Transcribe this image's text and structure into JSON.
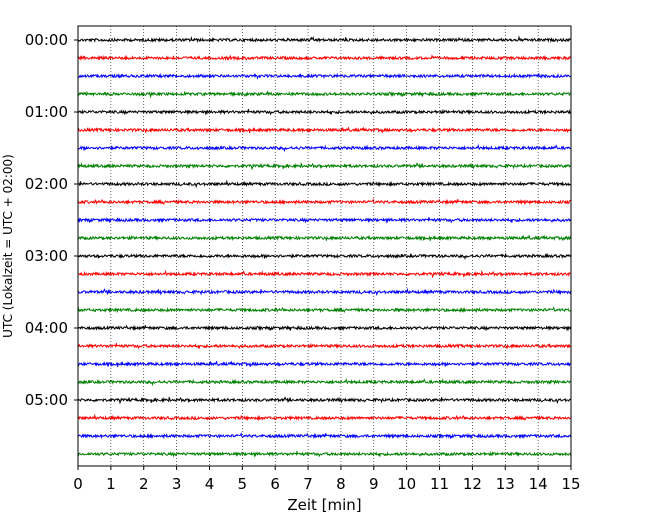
{
  "chart_data": {
    "type": "line",
    "title": "",
    "xlabel": "Zeit  [min]",
    "ylabel": "UTC (Lokalzeit = UTC + 02:00)",
    "xlim": [
      0,
      15
    ],
    "x_ticks": [
      "0",
      "1",
      "2",
      "3",
      "4",
      "5",
      "6",
      "7",
      "8",
      "9",
      "10",
      "11",
      "12",
      "13",
      "14",
      "15"
    ],
    "y_ticks": [
      "00:00",
      "01:00",
      "02:00",
      "03:00",
      "04:00",
      "05:00"
    ],
    "grid": "vertical dotted",
    "trace_interval_minutes": 15,
    "trace_count": 24,
    "trace_colors": [
      "#000000",
      "#ff0000",
      "#0000ff",
      "#008000"
    ]
  }
}
